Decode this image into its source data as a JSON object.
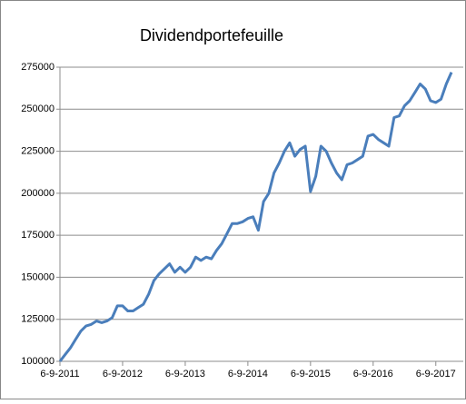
{
  "chart_data": {
    "type": "line",
    "title": "Dividendportefeuille",
    "categories": [
      "6-9-2011",
      null,
      null,
      null,
      null,
      null,
      null,
      null,
      null,
      null,
      null,
      null,
      "6-9-2012",
      null,
      null,
      null,
      null,
      null,
      null,
      null,
      null,
      null,
      null,
      null,
      "6-9-2013",
      null,
      null,
      null,
      null,
      null,
      null,
      null,
      null,
      null,
      null,
      null,
      "6-9-2014",
      null,
      null,
      null,
      null,
      null,
      null,
      null,
      null,
      null,
      null,
      null,
      "6-9-2015",
      null,
      null,
      null,
      null,
      null,
      null,
      null,
      null,
      null,
      null,
      null,
      "6-9-2016",
      null,
      null,
      null,
      null,
      null,
      null,
      null,
      null,
      null,
      null,
      null,
      "6-9-2017",
      null,
      null,
      null
    ],
    "values": [
      100000,
      104000,
      108000,
      113000,
      118000,
      121000,
      122000,
      124000,
      123000,
      124000,
      126000,
      133000,
      133000,
      130000,
      130000,
      132000,
      134000,
      140000,
      148000,
      152000,
      155000,
      158000,
      153000,
      156000,
      153000,
      156000,
      162000,
      160000,
      162000,
      161000,
      166000,
      170000,
      176000,
      182000,
      182000,
      183000,
      185000,
      186000,
      178000,
      195000,
      200000,
      212000,
      218000,
      225000,
      230000,
      222000,
      226000,
      228000,
      201000,
      210000,
      228000,
      225000,
      218000,
      212000,
      208000,
      217000,
      218000,
      220000,
      222000,
      234000,
      235000,
      232000,
      230000,
      228000,
      245000,
      246000,
      252000,
      255000,
      260000,
      265000,
      262000,
      255000,
      254000,
      256000,
      265000,
      272000
    ],
    "color": "#4a7ebb",
    "ylim": [
      100000,
      275000
    ],
    "yticks": [
      100000,
      125000,
      150000,
      175000,
      200000,
      225000,
      250000,
      275000
    ],
    "grid": true
  }
}
